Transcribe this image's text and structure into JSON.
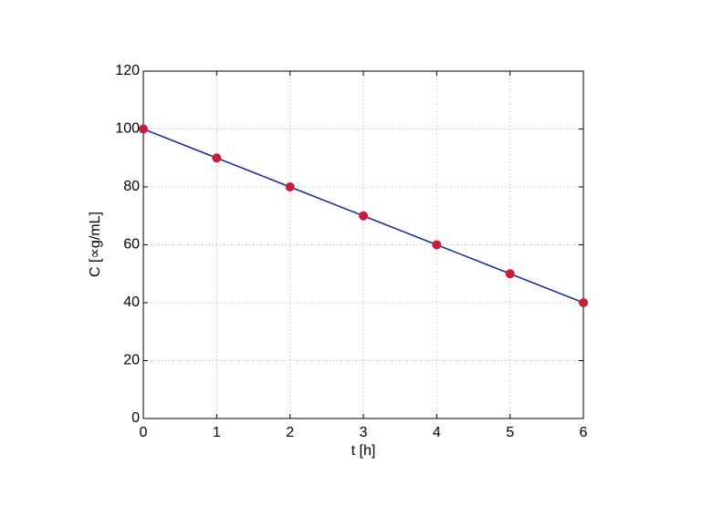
{
  "chart_data": {
    "type": "line",
    "xlabel": "t  [h]",
    "ylabel": "C  [∝g/mL]",
    "x": [
      0,
      1,
      2,
      3,
      4,
      5,
      6
    ],
    "values": [
      100,
      90,
      80,
      70,
      60,
      50,
      40
    ],
    "line_color": "#1c2a8a",
    "marker_color": "#c41e3a",
    "xlim": [
      0,
      6
    ],
    "xticks": [
      0,
      1,
      2,
      3,
      4,
      5,
      6
    ],
    "ylim": [
      0,
      120
    ],
    "yticks": [
      0,
      20,
      40,
      60,
      80,
      100,
      120
    ],
    "grid": true
  }
}
